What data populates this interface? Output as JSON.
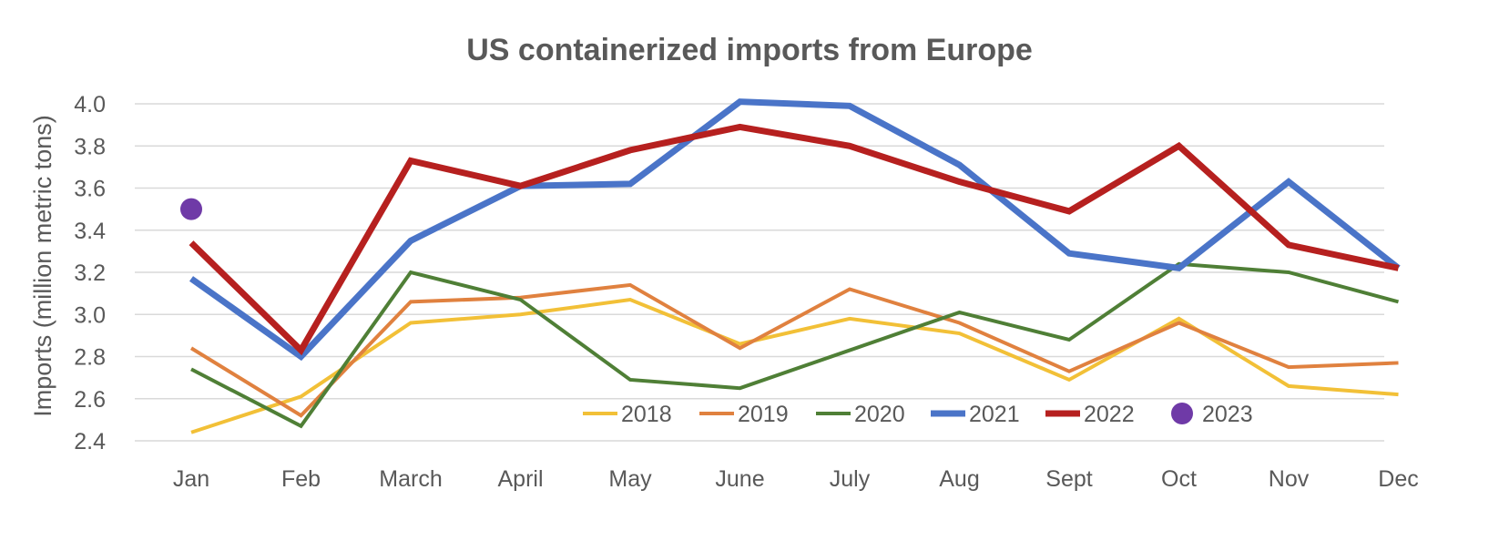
{
  "chart_data": {
    "type": "line",
    "title": "US containerized imports from Europe",
    "xlabel": "",
    "ylabel": "Imports (million metric tons)",
    "categories": [
      "Jan",
      "Feb",
      "March",
      "April",
      "May",
      "June",
      "July",
      "Aug",
      "Sept",
      "Oct",
      "Nov",
      "Dec"
    ],
    "ylim": [
      2.4,
      4.0
    ],
    "yticks": [
      "2.4",
      "2.6",
      "2.8",
      "3.0",
      "3.2",
      "3.4",
      "3.6",
      "3.8",
      "4.0"
    ],
    "grid": true,
    "legend_position": "bottom-right inside plot",
    "series": [
      {
        "name": "2018",
        "color": "#F2C037",
        "style": "line",
        "values": [
          2.44,
          2.61,
          2.96,
          3.0,
          3.07,
          2.86,
          2.98,
          2.91,
          2.69,
          2.98,
          2.66,
          2.62
        ]
      },
      {
        "name": "2019",
        "color": "#E0813F",
        "style": "line",
        "values": [
          2.84,
          2.52,
          3.06,
          3.08,
          3.14,
          2.84,
          3.12,
          2.96,
          2.73,
          2.96,
          2.75,
          2.77
        ]
      },
      {
        "name": "2020",
        "color": "#4F7F36",
        "style": "line",
        "values": [
          2.74,
          2.47,
          3.2,
          3.07,
          2.69,
          2.65,
          2.83,
          3.01,
          2.88,
          3.24,
          3.2,
          3.06
        ]
      },
      {
        "name": "2021",
        "color": "#4A74C8",
        "style": "line",
        "values": [
          3.17,
          2.8,
          3.35,
          3.61,
          3.62,
          4.01,
          3.99,
          3.71,
          3.29,
          3.22,
          3.63,
          3.22
        ]
      },
      {
        "name": "2022",
        "color": "#B6201F",
        "style": "line",
        "values": [
          3.34,
          2.83,
          3.73,
          3.61,
          3.78,
          3.89,
          3.8,
          3.63,
          3.49,
          3.8,
          3.33,
          3.22
        ]
      },
      {
        "name": "2023",
        "color": "#6F3AA7",
        "style": "point",
        "values": [
          3.5,
          null,
          null,
          null,
          null,
          null,
          null,
          null,
          null,
          null,
          null,
          null
        ]
      }
    ]
  }
}
